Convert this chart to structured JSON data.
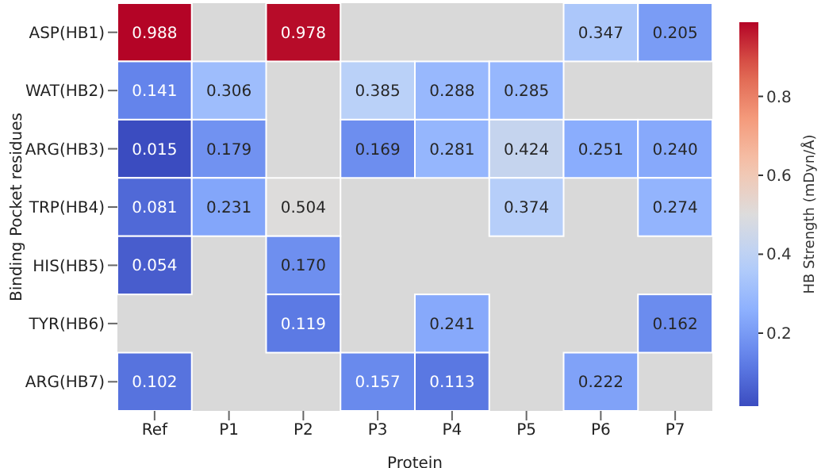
{
  "chart_data": {
    "type": "heatmap",
    "xlabel": "Protein",
    "ylabel": "Binding Pocket residues",
    "clabel": "HB Strength (mDyn/Å)",
    "categories": [
      "Ref",
      "P1",
      "P2",
      "P3",
      "P4",
      "P5",
      "P6",
      "P7"
    ],
    "y_categories": [
      "ASP(HB1)",
      "WAT(HB2)",
      "ARG(HB3)",
      "TRP(HB4)",
      "HIS(HB5)",
      "TYR(HB6)",
      "ARG(HB7)"
    ],
    "cells": [
      [
        0.988,
        null,
        0.978,
        null,
        null,
        null,
        0.347,
        0.205
      ],
      [
        0.141,
        0.306,
        null,
        0.385,
        0.288,
        0.285,
        null,
        null
      ],
      [
        0.015,
        0.179,
        null,
        0.169,
        0.281,
        0.424,
        0.251,
        0.24
      ],
      [
        0.081,
        0.231,
        0.504,
        null,
        null,
        0.374,
        null,
        0.274
      ],
      [
        0.054,
        null,
        0.17,
        null,
        null,
        null,
        null,
        null
      ],
      [
        null,
        null,
        0.119,
        null,
        0.241,
        null,
        null,
        0.162
      ],
      [
        0.102,
        null,
        null,
        0.157,
        0.113,
        null,
        0.222,
        null
      ]
    ],
    "cell_labels": [
      [
        "0.988",
        null,
        "0.978",
        null,
        null,
        null,
        "0.347",
        "0.205"
      ],
      [
        "0.141",
        "0.306",
        null,
        "0.385",
        "0.288",
        "0.285",
        null,
        null
      ],
      [
        "0.015",
        "0.179",
        null,
        "0.169",
        "0.281",
        "0.424",
        "0.251",
        "0.240"
      ],
      [
        "0.081",
        "0.231",
        "0.504",
        null,
        null,
        "0.374",
        null,
        "0.274"
      ],
      [
        "0.054",
        null,
        "0.170",
        null,
        null,
        null,
        null,
        null
      ],
      [
        null,
        null,
        "0.119",
        null,
        "0.241",
        null,
        null,
        "0.162"
      ],
      [
        "0.102",
        null,
        null,
        "0.157",
        "0.113",
        null,
        "0.222",
        null
      ]
    ],
    "clim": [
      0.015,
      0.988
    ],
    "cticks": [
      0.2,
      0.4,
      0.6,
      0.8
    ]
  }
}
